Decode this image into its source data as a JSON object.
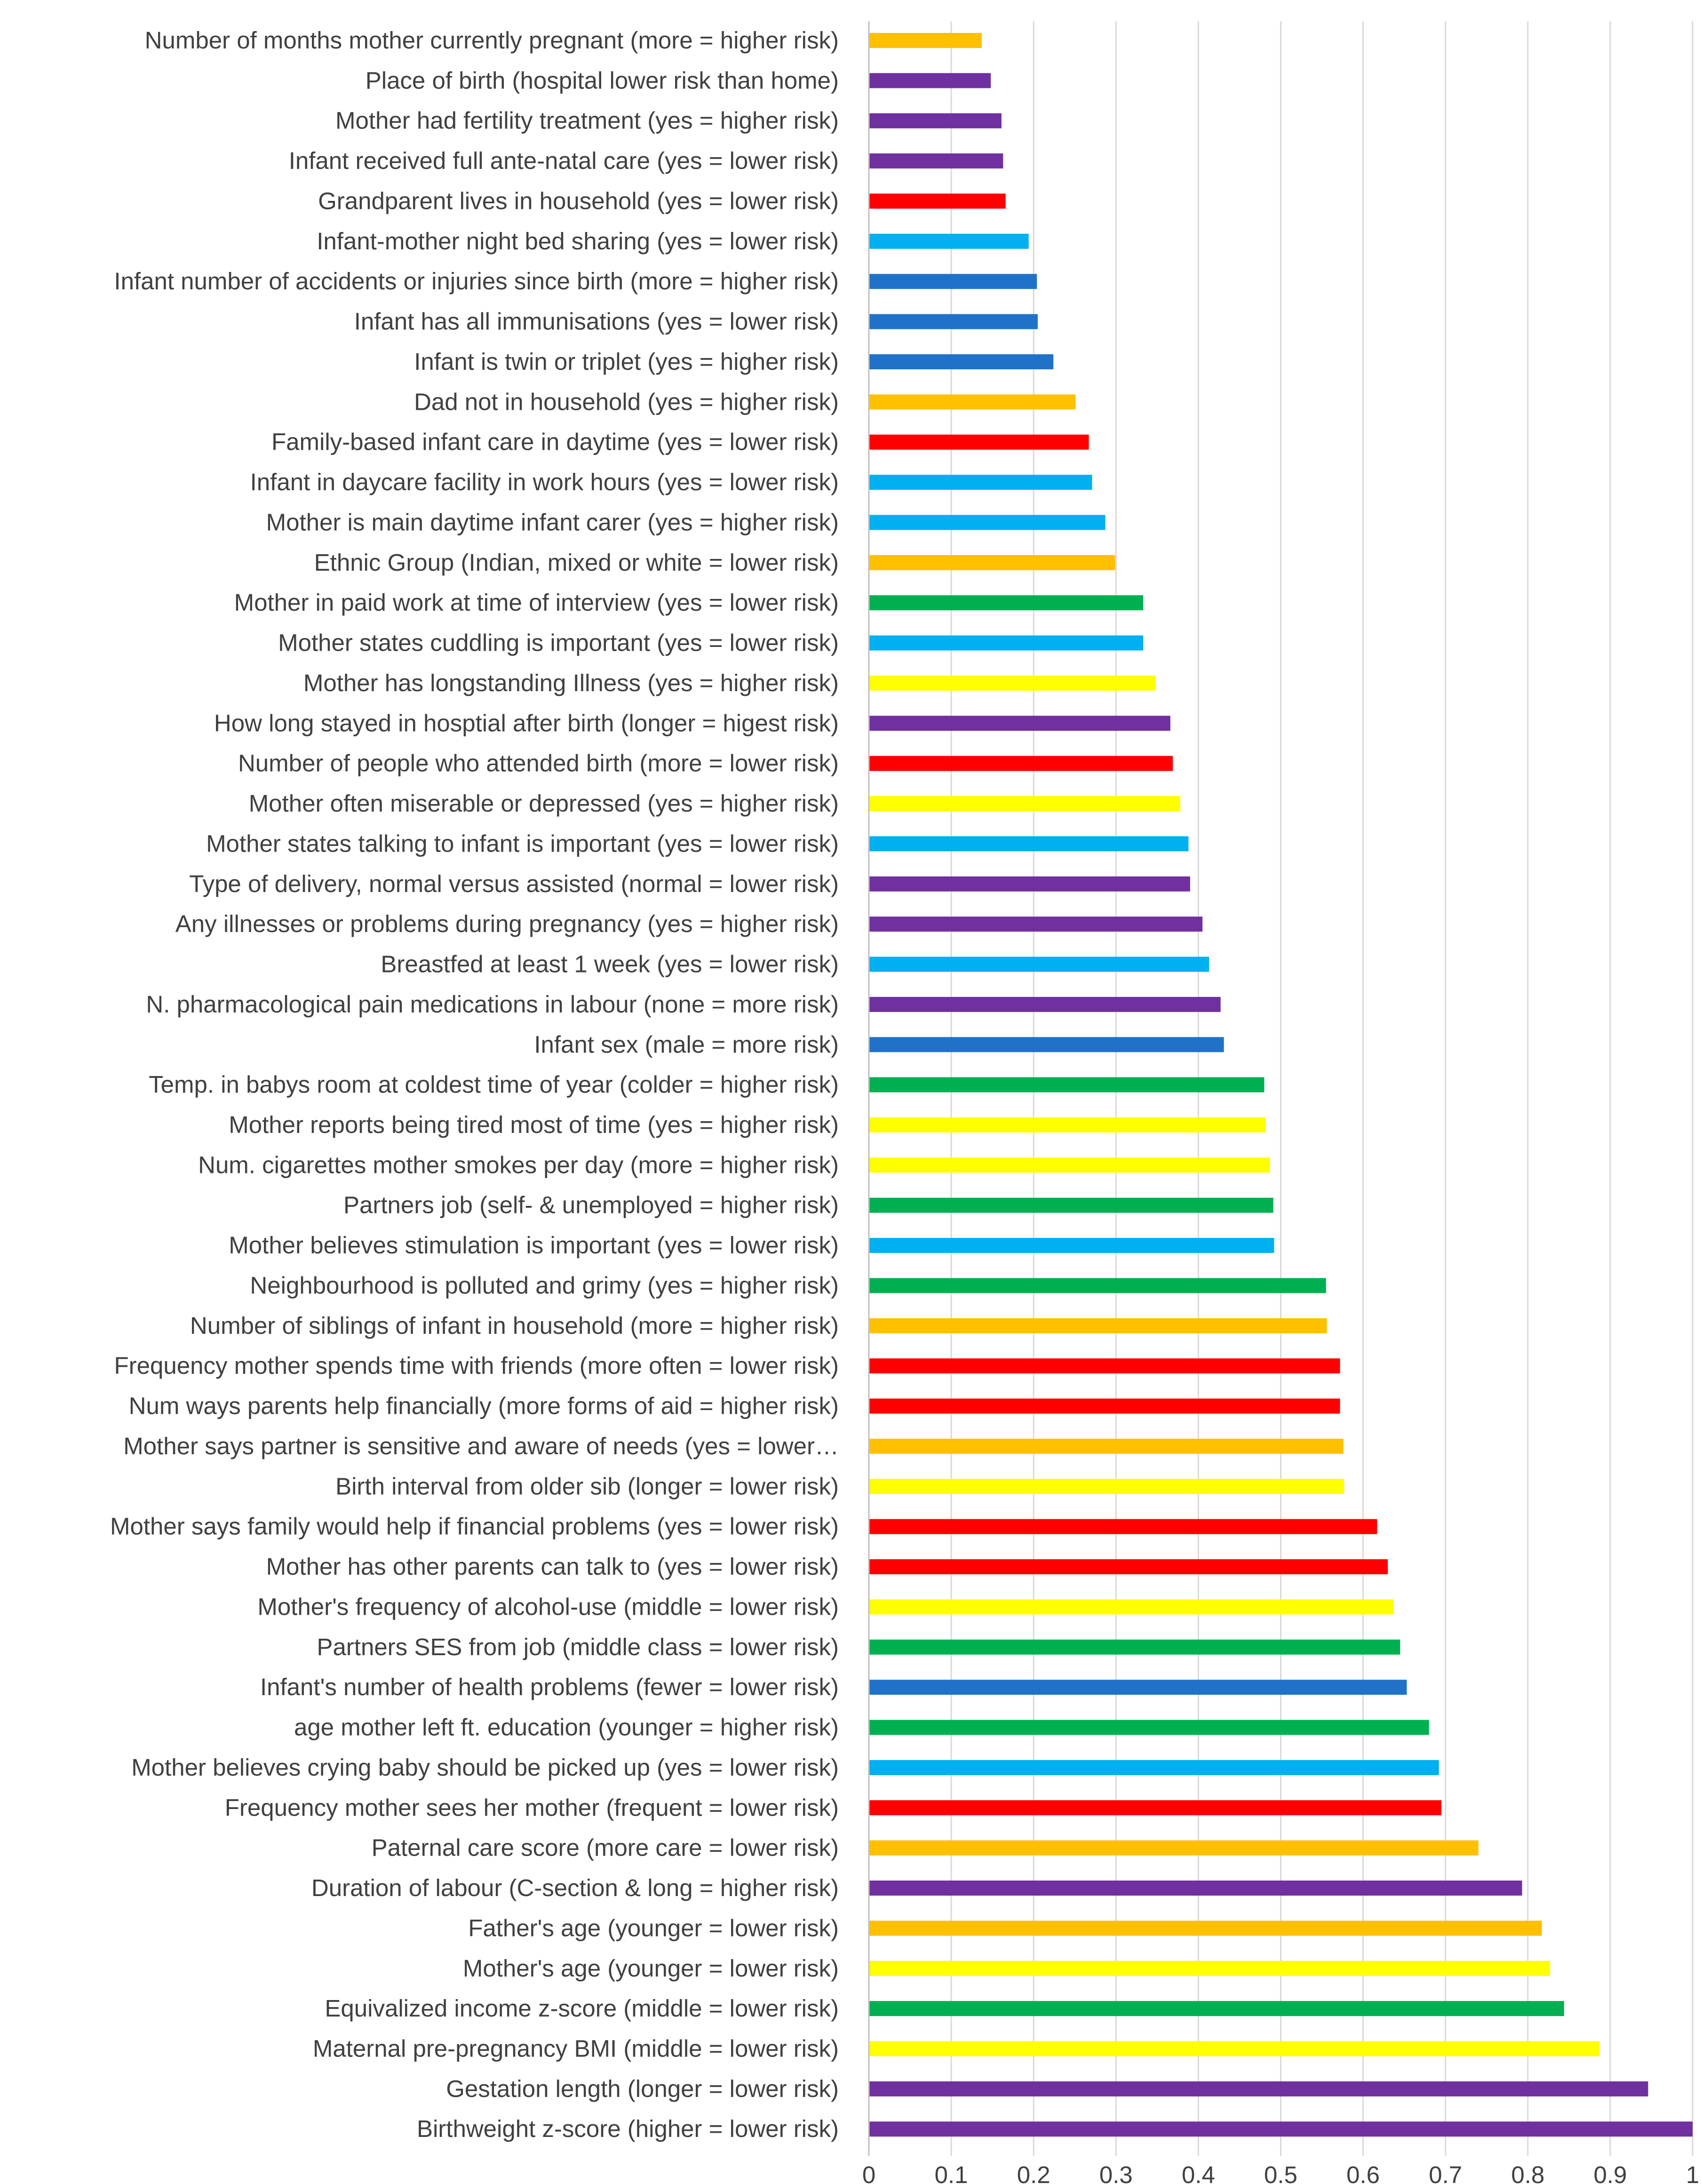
{
  "chart_data": {
    "type": "bar",
    "orientation": "horizontal",
    "title": "",
    "xlabel": "",
    "ylabel": "",
    "xlim": [
      0,
      1
    ],
    "x_ticks": [
      "0",
      "0.1",
      "0.2",
      "0.3",
      "0.4",
      "0.5",
      "0.6",
      "0.7",
      "0.8",
      "0.9",
      "1"
    ],
    "grid": true,
    "legend": "none",
    "colors": {
      "purple": "#7030a0",
      "orange": "#ffc000",
      "red": "#ff0000",
      "lightblue": "#00b0f0",
      "blue": "#1f72c8",
      "green": "#00b050",
      "yellow": "#ffff00"
    },
    "bars": [
      {
        "label": "Number of months mother currently pregnant (more = higher risk)",
        "value": 0.137,
        "color": "orange"
      },
      {
        "label": "Place of birth (hospital lower risk than home)",
        "value": 0.148,
        "color": "purple"
      },
      {
        "label": "Mother had fertility treatment (yes = higher risk)",
        "value": 0.161,
        "color": "purple"
      },
      {
        "label": "Infant received full ante-natal care (yes = lower risk)",
        "value": 0.163,
        "color": "purple"
      },
      {
        "label": "Grandparent lives in household (yes = lower risk)",
        "value": 0.166,
        "color": "red"
      },
      {
        "label": "Infant-mother night bed sharing (yes = lower risk)",
        "value": 0.194,
        "color": "lightblue"
      },
      {
        "label": "Infant number of accidents or injuries since birth (more = higher risk)",
        "value": 0.204,
        "color": "blue"
      },
      {
        "label": "Infant has all immunisations (yes = lower risk)",
        "value": 0.205,
        "color": "blue"
      },
      {
        "label": "Infant is twin or triplet (yes = higher risk)",
        "value": 0.224,
        "color": "blue"
      },
      {
        "label": "Dad not in household (yes = higher risk)",
        "value": 0.251,
        "color": "orange"
      },
      {
        "label": "Family-based infant care in daytime (yes = lower risk)",
        "value": 0.267,
        "color": "red"
      },
      {
        "label": "Infant in daycare facility in work hours (yes = lower risk)",
        "value": 0.271,
        "color": "lightblue"
      },
      {
        "label": "Mother is main daytime infant carer (yes = higher risk)",
        "value": 0.287,
        "color": "lightblue"
      },
      {
        "label": "Ethnic Group  (Indian, mixed or white = lower risk)",
        "value": 0.299,
        "color": "orange"
      },
      {
        "label": "Mother in paid work at time of interview (yes = lower risk)",
        "value": 0.333,
        "color": "green"
      },
      {
        "label": "Mother states cuddling is important (yes = lower risk)",
        "value": 0.333,
        "color": "lightblue"
      },
      {
        "label": "Mother has longstanding Illness (yes = higher risk)",
        "value": 0.348,
        "color": "yellow"
      },
      {
        "label": "How long stayed in hosptial after birth (longer = higest risk)",
        "value": 0.366,
        "color": "purple"
      },
      {
        "label": "Number of people who attended birth (more = lower risk)",
        "value": 0.369,
        "color": "red"
      },
      {
        "label": "Mother often miserable or depressed (yes = higher risk)",
        "value": 0.378,
        "color": "yellow"
      },
      {
        "label": "Mother states talking to infant is important (yes = lower risk)",
        "value": 0.388,
        "color": "lightblue"
      },
      {
        "label": "Type of delivery, normal versus assisted (normal = lower risk)",
        "value": 0.39,
        "color": "purple"
      },
      {
        "label": "Any illnesses or problems during pregnancy (yes = higher risk)",
        "value": 0.405,
        "color": "purple"
      },
      {
        "label": "Breastfed at least 1 week (yes = lower risk)",
        "value": 0.413,
        "color": "lightblue"
      },
      {
        "label": "N. pharmacological pain medications in labour (none = more risk)",
        "value": 0.427,
        "color": "purple"
      },
      {
        "label": "Infant sex (male = more risk)",
        "value": 0.431,
        "color": "blue"
      },
      {
        "label": "Temp. in babys room at coldest time of year (colder = higher risk)",
        "value": 0.48,
        "color": "green"
      },
      {
        "label": "Mother reports being tired most of time (yes = higher risk)",
        "value": 0.482,
        "color": "yellow"
      },
      {
        "label": "Num. cigarettes mother smokes per day (more = higher risk)",
        "value": 0.487,
        "color": "yellow"
      },
      {
        "label": "Partners job (self- & unemployed = higher risk)",
        "value": 0.491,
        "color": "green"
      },
      {
        "label": "Mother believes stimulation is important (yes = lower risk)",
        "value": 0.492,
        "color": "lightblue"
      },
      {
        "label": "Neighbourhood is polluted and grimy (yes = higher risk)",
        "value": 0.555,
        "color": "green"
      },
      {
        "label": "Number of siblings of infant in household (more = higher risk)",
        "value": 0.556,
        "color": "orange"
      },
      {
        "label": "Frequency mother spends time with friends (more often = lower risk)",
        "value": 0.572,
        "color": "red"
      },
      {
        "label": "Num ways parents help financially (more forms of aid = higher risk)",
        "value": 0.572,
        "color": "red"
      },
      {
        "label": "Mother says partner is sensitive and aware of needs (yes = lower…",
        "value": 0.576,
        "color": "orange"
      },
      {
        "label": "Birth interval from older sib (longer = lower risk)",
        "value": 0.577,
        "color": "yellow"
      },
      {
        "label": "Mother says family would help if financial problems (yes = lower risk)",
        "value": 0.617,
        "color": "red"
      },
      {
        "label": "Mother has other parents can talk to (yes = lower risk)",
        "value": 0.63,
        "color": "red"
      },
      {
        "label": "Mother's frequency of alcohol-use (middle = lower risk)",
        "value": 0.637,
        "color": "yellow"
      },
      {
        "label": "Partners SES from job (middle class = lower risk)",
        "value": 0.645,
        "color": "green"
      },
      {
        "label": "Infant's number of health problems (fewer = lower risk)",
        "value": 0.653,
        "color": "blue"
      },
      {
        "label": "age mother left ft. education (younger = higher risk)",
        "value": 0.68,
        "color": "green"
      },
      {
        "label": "Mother believes crying baby should be picked up (yes = lower risk)",
        "value": 0.692,
        "color": "lightblue"
      },
      {
        "label": "Frequency mother sees her mother (frequent = lower risk)",
        "value": 0.695,
        "color": "red"
      },
      {
        "label": "Paternal care score (more care = lower risk)",
        "value": 0.74,
        "color": "orange"
      },
      {
        "label": "Duration of labour (C-section & long = higher risk)",
        "value": 0.793,
        "color": "purple"
      },
      {
        "label": "Father's age (younger = lower risk)",
        "value": 0.817,
        "color": "orange"
      },
      {
        "label": "Mother's age (younger = lower risk)",
        "value": 0.827,
        "color": "yellow"
      },
      {
        "label": "Equivalized income z-score (middle = lower risk)",
        "value": 0.844,
        "color": "green"
      },
      {
        "label": "Maternal pre-pregnancy BMI (middle = lower risk)",
        "value": 0.887,
        "color": "yellow"
      },
      {
        "label": "Gestation length (longer = lower risk)",
        "value": 0.946,
        "color": "purple"
      },
      {
        "label": "Birthweight z-score (higher = lower risk)",
        "value": 1.0,
        "color": "purple"
      }
    ]
  }
}
